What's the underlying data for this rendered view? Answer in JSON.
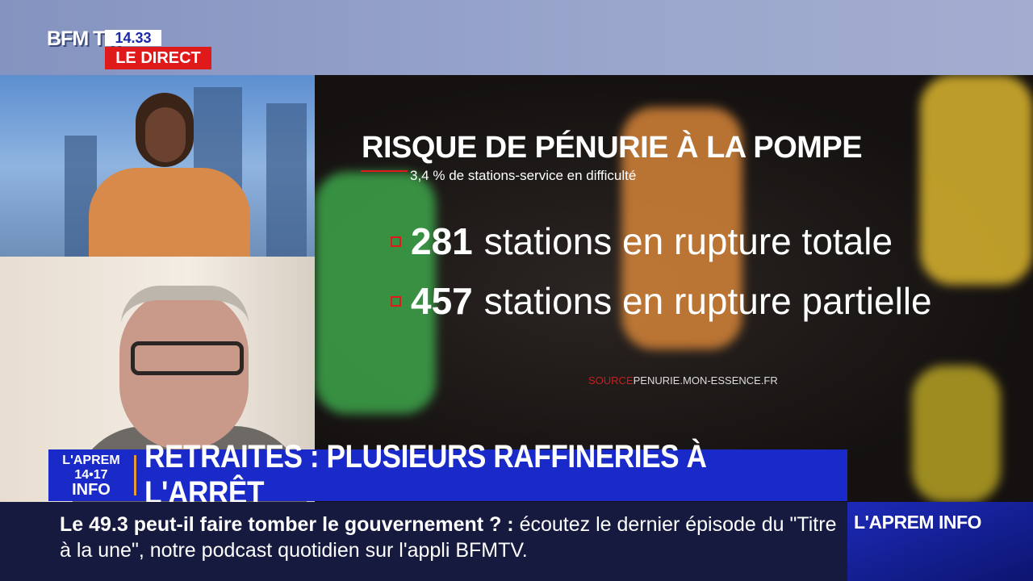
{
  "channel": {
    "logo": "BFM TV.",
    "time": "14.33",
    "live_label": "LE DIRECT"
  },
  "graphic": {
    "title": "RISQUE DE PÉNURIE À LA POMPE",
    "subtitle": "3,4 % de stations-service en difficulté",
    "stats": [
      {
        "number": "281",
        "label": "stations en rupture totale"
      },
      {
        "number": "457",
        "label": "stations en rupture partielle"
      }
    ],
    "source_label": "SOURCE",
    "source": "PENURIE.MON-ESSENCE.FR"
  },
  "banner": {
    "show_line1": "L'APREM 14•17",
    "show_line2": "INFO",
    "headline": "RETRAITES : PLUSIEURS RAFFINERIES À L'ARRÊT"
  },
  "ticker": {
    "bold": "Le 49.3 peut-il faire tomber le gouvernement ? :",
    "text": " écoutez le dernier épisode du \"Titre à la une\", notre podcast quotidien sur l'appli BFMTV."
  },
  "corner": {
    "label": "L'APREM INFO"
  },
  "colors": {
    "accent_red": "#e01a1a",
    "banner_blue": "#1a2ac8",
    "ticker_bg": "#151a3e"
  }
}
